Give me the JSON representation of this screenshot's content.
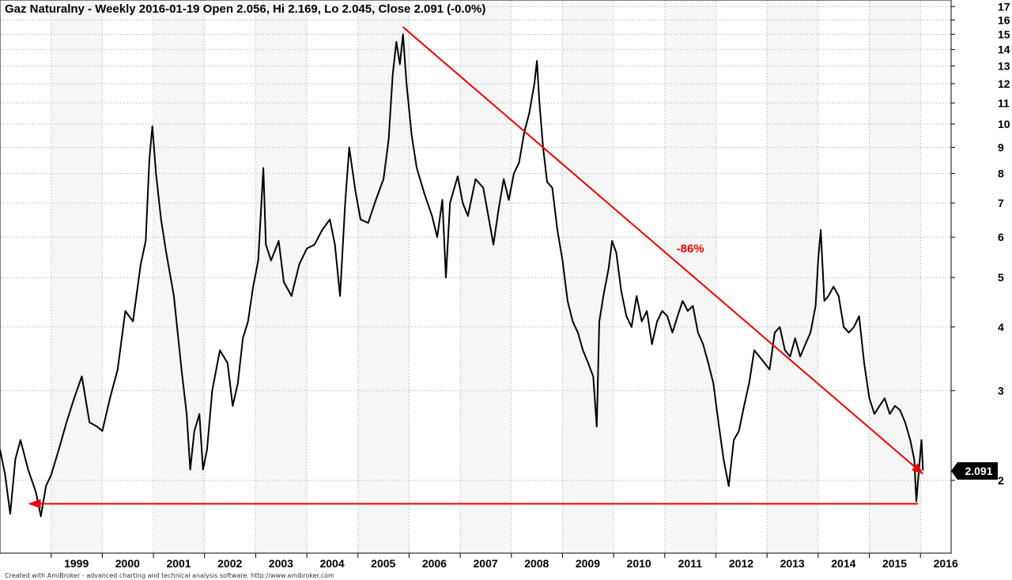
{
  "chart_data": {
    "type": "line",
    "title": "Gaz Naturalny - Weekly 2016-01-19 Open 2.056, Hi 2.169, Lo 2.045, Close 2.091 (-0.0%)",
    "footer": "Created with AmiBroker - advanced charting and technical analysis software. http://www.amibroker.com",
    "y_scale": "log",
    "ylim": [
      1.5,
      17.5
    ],
    "y_ticks": [
      2,
      3,
      4,
      5,
      6,
      7,
      8,
      9,
      10,
      11,
      12,
      13,
      14,
      15,
      16,
      17
    ],
    "x_ticks": [
      "1999",
      "2000",
      "2001",
      "2002",
      "2003",
      "2004",
      "2005",
      "2006",
      "2007",
      "2008",
      "2009",
      "2010",
      "2011",
      "2012",
      "2013",
      "2014",
      "2015",
      "2016"
    ],
    "grid": true,
    "last_value_label": "2.091",
    "series": [
      {
        "values": [
          [
            1998.0,
            2.3
          ],
          [
            1998.1,
            2.05
          ],
          [
            1998.2,
            1.72
          ],
          [
            1998.3,
            2.2
          ],
          [
            1998.4,
            2.4
          ],
          [
            1998.55,
            2.1
          ],
          [
            1998.7,
            1.9
          ],
          [
            1998.8,
            1.7
          ],
          [
            1998.9,
            1.95
          ],
          [
            1999.0,
            2.05
          ],
          [
            1999.15,
            2.3
          ],
          [
            1999.3,
            2.6
          ],
          [
            1999.45,
            2.9
          ],
          [
            1999.6,
            3.2
          ],
          [
            1999.75,
            2.6
          ],
          [
            1999.9,
            2.55
          ],
          [
            2000.0,
            2.5
          ],
          [
            2000.15,
            2.9
          ],
          [
            2000.3,
            3.3
          ],
          [
            2000.45,
            4.3
          ],
          [
            2000.6,
            4.1
          ],
          [
            2000.75,
            5.3
          ],
          [
            2000.85,
            5.9
          ],
          [
            2000.92,
            8.5
          ],
          [
            2000.98,
            9.9
          ],
          [
            2001.05,
            8.0
          ],
          [
            2001.15,
            6.5
          ],
          [
            2001.25,
            5.6
          ],
          [
            2001.4,
            4.6
          ],
          [
            2001.55,
            3.3
          ],
          [
            2001.65,
            2.7
          ],
          [
            2001.72,
            2.1
          ],
          [
            2001.8,
            2.5
          ],
          [
            2001.9,
            2.7
          ],
          [
            2001.97,
            2.1
          ],
          [
            2002.05,
            2.3
          ],
          [
            2002.15,
            3.0
          ],
          [
            2002.3,
            3.6
          ],
          [
            2002.45,
            3.4
          ],
          [
            2002.55,
            2.8
          ],
          [
            2002.65,
            3.1
          ],
          [
            2002.75,
            3.8
          ],
          [
            2002.85,
            4.1
          ],
          [
            2002.95,
            4.8
          ],
          [
            2003.05,
            5.4
          ],
          [
            2003.15,
            8.2
          ],
          [
            2003.2,
            5.8
          ],
          [
            2003.3,
            5.4
          ],
          [
            2003.45,
            5.9
          ],
          [
            2003.55,
            4.9
          ],
          [
            2003.7,
            4.6
          ],
          [
            2003.85,
            5.3
          ],
          [
            2004.0,
            5.7
          ],
          [
            2004.15,
            5.8
          ],
          [
            2004.3,
            6.2
          ],
          [
            2004.45,
            6.5
          ],
          [
            2004.55,
            5.8
          ],
          [
            2004.65,
            4.6
          ],
          [
            2004.75,
            7.0
          ],
          [
            2004.83,
            9.0
          ],
          [
            2004.95,
            7.4
          ],
          [
            2005.05,
            6.5
          ],
          [
            2005.2,
            6.4
          ],
          [
            2005.35,
            7.1
          ],
          [
            2005.5,
            7.8
          ],
          [
            2005.6,
            9.3
          ],
          [
            2005.68,
            12.5
          ],
          [
            2005.75,
            14.5
          ],
          [
            2005.82,
            13.1
          ],
          [
            2005.88,
            15.0
          ],
          [
            2005.95,
            12.0
          ],
          [
            2006.05,
            9.5
          ],
          [
            2006.15,
            8.2
          ],
          [
            2006.3,
            7.3
          ],
          [
            2006.45,
            6.6
          ],
          [
            2006.55,
            6.0
          ],
          [
            2006.65,
            7.1
          ],
          [
            2006.72,
            5.0
          ],
          [
            2006.8,
            7.0
          ],
          [
            2006.95,
            7.9
          ],
          [
            2007.05,
            7.0
          ],
          [
            2007.15,
            6.6
          ],
          [
            2007.3,
            7.8
          ],
          [
            2007.45,
            7.5
          ],
          [
            2007.55,
            6.6
          ],
          [
            2007.65,
            5.8
          ],
          [
            2007.75,
            6.8
          ],
          [
            2007.85,
            7.8
          ],
          [
            2007.95,
            7.1
          ],
          [
            2008.05,
            8.0
          ],
          [
            2008.15,
            8.4
          ],
          [
            2008.25,
            9.6
          ],
          [
            2008.35,
            10.5
          ],
          [
            2008.45,
            12.0
          ],
          [
            2008.5,
            13.3
          ],
          [
            2008.55,
            11.0
          ],
          [
            2008.62,
            9.0
          ],
          [
            2008.7,
            7.7
          ],
          [
            2008.8,
            7.5
          ],
          [
            2008.9,
            6.2
          ],
          [
            2009.0,
            5.4
          ],
          [
            2009.1,
            4.5
          ],
          [
            2009.2,
            4.1
          ],
          [
            2009.3,
            3.9
          ],
          [
            2009.4,
            3.6
          ],
          [
            2009.5,
            3.4
          ],
          [
            2009.6,
            3.2
          ],
          [
            2009.67,
            2.55
          ],
          [
            2009.72,
            4.1
          ],
          [
            2009.8,
            4.6
          ],
          [
            2009.9,
            5.2
          ],
          [
            2009.97,
            5.9
          ],
          [
            2010.05,
            5.6
          ],
          [
            2010.15,
            4.7
          ],
          [
            2010.25,
            4.2
          ],
          [
            2010.35,
            4.0
          ],
          [
            2010.45,
            4.6
          ],
          [
            2010.55,
            4.1
          ],
          [
            2010.65,
            4.3
          ],
          [
            2010.75,
            3.7
          ],
          [
            2010.85,
            4.1
          ],
          [
            2010.95,
            4.3
          ],
          [
            2011.05,
            4.2
          ],
          [
            2011.15,
            3.9
          ],
          [
            2011.25,
            4.2
          ],
          [
            2011.35,
            4.5
          ],
          [
            2011.45,
            4.3
          ],
          [
            2011.55,
            4.4
          ],
          [
            2011.65,
            3.9
          ],
          [
            2011.75,
            3.7
          ],
          [
            2011.85,
            3.4
          ],
          [
            2011.95,
            3.1
          ],
          [
            2012.05,
            2.6
          ],
          [
            2012.15,
            2.2
          ],
          [
            2012.25,
            1.95
          ],
          [
            2012.35,
            2.4
          ],
          [
            2012.45,
            2.5
          ],
          [
            2012.55,
            2.8
          ],
          [
            2012.65,
            3.1
          ],
          [
            2012.75,
            3.6
          ],
          [
            2012.85,
            3.5
          ],
          [
            2012.95,
            3.4
          ],
          [
            2013.05,
            3.3
          ],
          [
            2013.15,
            3.9
          ],
          [
            2013.25,
            4.0
          ],
          [
            2013.35,
            3.6
          ],
          [
            2013.45,
            3.5
          ],
          [
            2013.55,
            3.8
          ],
          [
            2013.65,
            3.5
          ],
          [
            2013.75,
            3.7
          ],
          [
            2013.85,
            3.9
          ],
          [
            2013.95,
            4.4
          ],
          [
            2014.0,
            5.4
          ],
          [
            2014.05,
            6.2
          ],
          [
            2014.12,
            4.5
          ],
          [
            2014.2,
            4.6
          ],
          [
            2014.3,
            4.8
          ],
          [
            2014.4,
            4.6
          ],
          [
            2014.5,
            4.0
          ],
          [
            2014.6,
            3.9
          ],
          [
            2014.7,
            4.0
          ],
          [
            2014.8,
            4.2
          ],
          [
            2014.9,
            3.4
          ],
          [
            2015.0,
            2.9
          ],
          [
            2015.1,
            2.7
          ],
          [
            2015.2,
            2.8
          ],
          [
            2015.3,
            2.9
          ],
          [
            2015.4,
            2.7
          ],
          [
            2015.5,
            2.8
          ],
          [
            2015.6,
            2.75
          ],
          [
            2015.7,
            2.6
          ],
          [
            2015.8,
            2.4
          ],
          [
            2015.88,
            2.2
          ],
          [
            2015.92,
            1.82
          ],
          [
            2015.97,
            2.1
          ],
          [
            2016.02,
            2.4
          ],
          [
            2016.05,
            2.091
          ]
        ]
      }
    ],
    "annotations": [
      {
        "type": "trendline",
        "color": "#ee0000",
        "from": [
          2005.88,
          15.5
        ],
        "to": [
          2016.05,
          2.06
        ]
      },
      {
        "type": "arrow",
        "color": "#ee0000",
        "from": [
          2015.95,
          1.8
        ],
        "to": [
          1998.55,
          1.8
        ]
      },
      {
        "type": "text",
        "text": "-86%",
        "color": "#ee0000",
        "x": 2011.5,
        "y": 5.6
      }
    ]
  }
}
